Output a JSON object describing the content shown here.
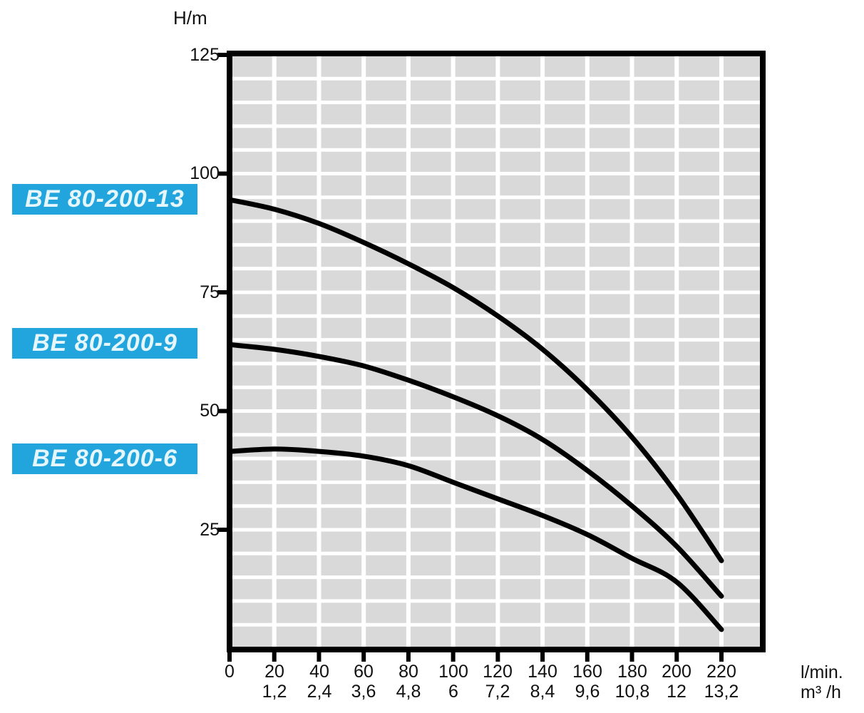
{
  "colors": {
    "label_box_bg": "#22a5dd",
    "label_box_text": "#e6f6fd",
    "plot_fill": "#d9d9d9",
    "grid_line": "#ffffff",
    "axis_and_curves": "#000000",
    "tick_text": "#111111"
  },
  "axis": {
    "y_unit": "H/m",
    "x_unit_row1": "l/min.",
    "x_unit_row2": "m³ /h",
    "y_ticks": [
      "125",
      "100",
      "75",
      "50",
      "25"
    ],
    "x_ticks_lmin": [
      "0",
      "20",
      "40",
      "60",
      "80",
      "100",
      "120",
      "140",
      "160",
      "180",
      "200",
      "220"
    ],
    "x_ticks_m3h": [
      "1,2",
      "2,4",
      "3,6",
      "4,8",
      "6",
      "7,2",
      "8,4",
      "9,6",
      "10,8",
      "12",
      "13,2"
    ]
  },
  "chart_data": {
    "type": "line",
    "title": "",
    "ylabel": "H/m",
    "xlabel": "l/min. (top row) / m³/h (bottom row)",
    "x_lmin": [
      0,
      20,
      40,
      60,
      80,
      100,
      120,
      140,
      160,
      180,
      200,
      220
    ],
    "x_m3h": [
      0,
      1.2,
      2.4,
      3.6,
      4.8,
      6,
      7.2,
      8.4,
      9.6,
      10.8,
      12,
      13.2
    ],
    "series": [
      {
        "name": "BE 80-200-13",
        "values": [
          94.5,
          92.5,
          89.5,
          85.5,
          81,
          76,
          70,
          63,
          54.5,
          44.5,
          32.5,
          18.5
        ]
      },
      {
        "name": "BE 80-200-9",
        "values": [
          64,
          63,
          61.5,
          59.5,
          56.5,
          53,
          49,
          44,
          37.5,
          30,
          21.5,
          11
        ]
      },
      {
        "name": "BE 80-200-6",
        "values": [
          41.5,
          42,
          41.5,
          40.5,
          38.5,
          35,
          31.5,
          28,
          24,
          19,
          14,
          4
        ]
      }
    ],
    "xlim": [
      0,
      237
    ],
    "ylim": [
      0,
      125.3
    ],
    "grid": {
      "x_step_lmin": 20,
      "y_step_m": 5,
      "style": "gray blocks with white gridlines"
    },
    "legend_position": "left labels in cyan boxes aligned with curve start heads"
  }
}
